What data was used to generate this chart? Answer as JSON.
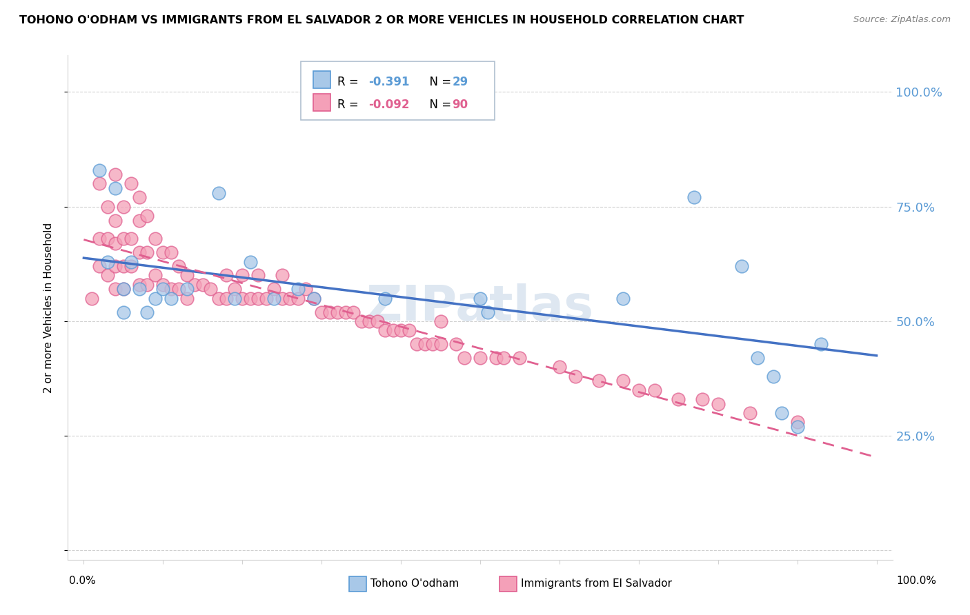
{
  "title": "TOHONO O'ODHAM VS IMMIGRANTS FROM EL SALVADOR 2 OR MORE VEHICLES IN HOUSEHOLD CORRELATION CHART",
  "source": "Source: ZipAtlas.com",
  "ylabel": "2 or more Vehicles in Household",
  "color_blue": "#a8c8e8",
  "color_pink": "#f4a0b8",
  "color_blue_edge": "#5b9bd5",
  "color_pink_edge": "#e06090",
  "color_blue_line": "#4472c4",
  "color_pink_line": "#e06090",
  "watermark": "ZIPatlas",
  "ytick_vals": [
    0.0,
    0.25,
    0.5,
    0.75,
    1.0
  ],
  "ytick_labels": [
    "",
    "25.0%",
    "50.0%",
    "75.0%",
    "100.0%"
  ],
  "blue_x": [
    0.02,
    0.03,
    0.04,
    0.05,
    0.05,
    0.06,
    0.07,
    0.08,
    0.09,
    0.1,
    0.11,
    0.13,
    0.17,
    0.19,
    0.21,
    0.24,
    0.27,
    0.29,
    0.38,
    0.5,
    0.51,
    0.68,
    0.77,
    0.83,
    0.85,
    0.87,
    0.88,
    0.9,
    0.93
  ],
  "blue_y": [
    0.83,
    0.63,
    0.79,
    0.57,
    0.52,
    0.63,
    0.57,
    0.52,
    0.55,
    0.57,
    0.55,
    0.57,
    0.78,
    0.55,
    0.63,
    0.55,
    0.57,
    0.55,
    0.55,
    0.55,
    0.52,
    0.55,
    0.77,
    0.62,
    0.42,
    0.38,
    0.3,
    0.27,
    0.45
  ],
  "pink_x": [
    0.01,
    0.02,
    0.02,
    0.02,
    0.03,
    0.03,
    0.03,
    0.04,
    0.04,
    0.04,
    0.04,
    0.04,
    0.05,
    0.05,
    0.05,
    0.05,
    0.06,
    0.06,
    0.06,
    0.07,
    0.07,
    0.07,
    0.07,
    0.08,
    0.08,
    0.08,
    0.09,
    0.09,
    0.1,
    0.1,
    0.11,
    0.11,
    0.12,
    0.12,
    0.13,
    0.13,
    0.14,
    0.15,
    0.16,
    0.17,
    0.18,
    0.18,
    0.19,
    0.2,
    0.2,
    0.21,
    0.22,
    0.22,
    0.23,
    0.24,
    0.25,
    0.25,
    0.26,
    0.27,
    0.28,
    0.29,
    0.3,
    0.31,
    0.32,
    0.33,
    0.34,
    0.35,
    0.36,
    0.37,
    0.38,
    0.39,
    0.4,
    0.41,
    0.42,
    0.43,
    0.44,
    0.45,
    0.45,
    0.47,
    0.48,
    0.5,
    0.52,
    0.53,
    0.55,
    0.6,
    0.62,
    0.65,
    0.68,
    0.7,
    0.72,
    0.75,
    0.78,
    0.8,
    0.84,
    0.9
  ],
  "pink_y": [
    0.55,
    0.8,
    0.68,
    0.62,
    0.75,
    0.68,
    0.6,
    0.82,
    0.72,
    0.67,
    0.62,
    0.57,
    0.75,
    0.68,
    0.62,
    0.57,
    0.8,
    0.68,
    0.62,
    0.77,
    0.72,
    0.65,
    0.58,
    0.73,
    0.65,
    0.58,
    0.68,
    0.6,
    0.65,
    0.58,
    0.65,
    0.57,
    0.62,
    0.57,
    0.6,
    0.55,
    0.58,
    0.58,
    0.57,
    0.55,
    0.6,
    0.55,
    0.57,
    0.6,
    0.55,
    0.55,
    0.6,
    0.55,
    0.55,
    0.57,
    0.6,
    0.55,
    0.55,
    0.55,
    0.57,
    0.55,
    0.52,
    0.52,
    0.52,
    0.52,
    0.52,
    0.5,
    0.5,
    0.5,
    0.48,
    0.48,
    0.48,
    0.48,
    0.45,
    0.45,
    0.45,
    0.45,
    0.5,
    0.45,
    0.42,
    0.42,
    0.42,
    0.42,
    0.42,
    0.4,
    0.38,
    0.37,
    0.37,
    0.35,
    0.35,
    0.33,
    0.33,
    0.32,
    0.3,
    0.28
  ]
}
